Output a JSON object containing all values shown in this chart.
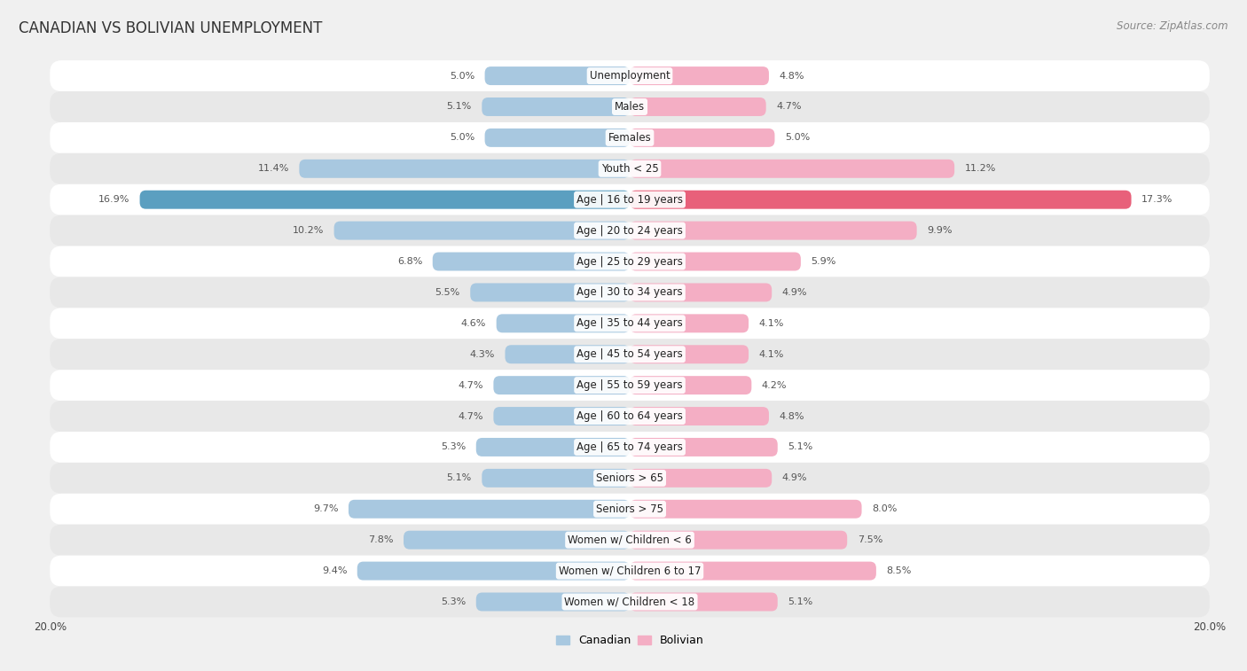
{
  "title": "CANADIAN VS BOLIVIAN UNEMPLOYMENT",
  "source": "Source: ZipAtlas.com",
  "categories": [
    "Unemployment",
    "Males",
    "Females",
    "Youth < 25",
    "Age | 16 to 19 years",
    "Age | 20 to 24 years",
    "Age | 25 to 29 years",
    "Age | 30 to 34 years",
    "Age | 35 to 44 years",
    "Age | 45 to 54 years",
    "Age | 55 to 59 years",
    "Age | 60 to 64 years",
    "Age | 65 to 74 years",
    "Seniors > 65",
    "Seniors > 75",
    "Women w/ Children < 6",
    "Women w/ Children 6 to 17",
    "Women w/ Children < 18"
  ],
  "canadian": [
    5.0,
    5.1,
    5.0,
    11.4,
    16.9,
    10.2,
    6.8,
    5.5,
    4.6,
    4.3,
    4.7,
    4.7,
    5.3,
    5.1,
    9.7,
    7.8,
    9.4,
    5.3
  ],
  "bolivian": [
    4.8,
    4.7,
    5.0,
    11.2,
    17.3,
    9.9,
    5.9,
    4.9,
    4.1,
    4.1,
    4.2,
    4.8,
    5.1,
    4.9,
    8.0,
    7.5,
    8.5,
    5.1
  ],
  "canadian_color": "#a8c8e0",
  "bolivian_color": "#f4aec4",
  "highlight_canadian_color": "#5b9fc0",
  "highlight_bolivian_color": "#e8607a",
  "highlight_row": 4,
  "bar_height": 0.6,
  "xlim": 20.0,
  "bg_color": "#f0f0f0",
  "row_bg_color_odd": "#ffffff",
  "row_bg_color_even": "#e8e8e8",
  "label_color": "#444444",
  "value_color": "#555555",
  "title_fontsize": 12,
  "cat_fontsize": 8.5,
  "value_fontsize": 8.0,
  "axis_label_fontsize": 8.5,
  "source_fontsize": 8.5,
  "legend_fontsize": 9
}
